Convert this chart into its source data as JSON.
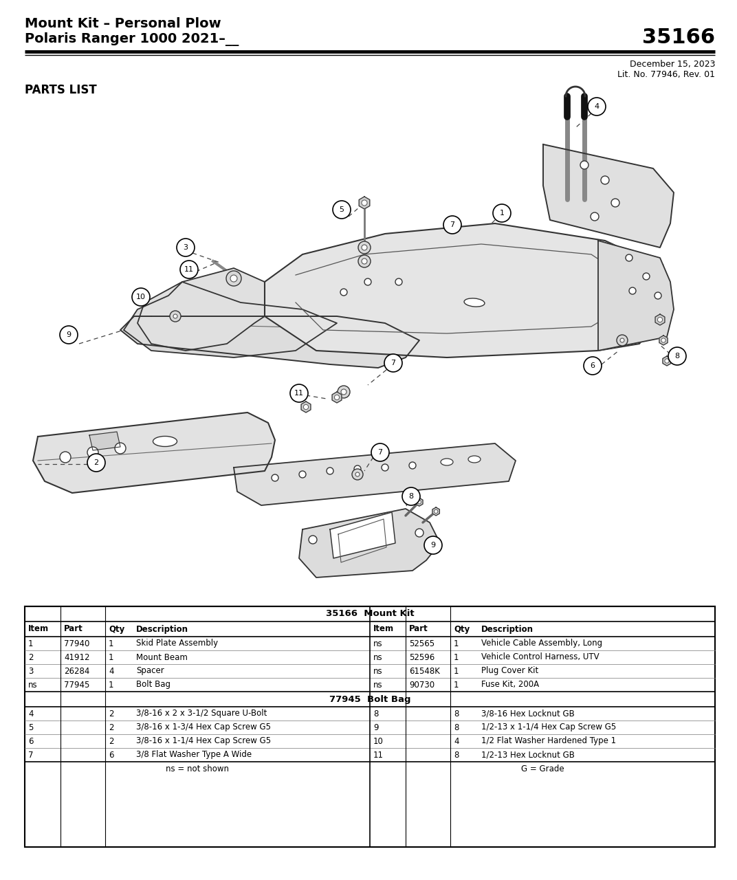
{
  "title_line1": "Mount Kit – Personal Plow",
  "title_line2": "Polaris Ranger 1000 2021–__",
  "part_number": "35166",
  "date": "December 15, 2023",
  "lit_no": "Lit. No. 77946, Rev. 01",
  "parts_list_label": "PARTS LIST",
  "bg_color": "#ffffff",
  "table_title1": "35166  Mount Kit",
  "table_title2": "77945  Bolt Bag",
  "mount_kit_rows": [
    [
      "1",
      "77940",
      "1",
      "Skid Plate Assembly",
      "ns",
      "52565",
      "1",
      "Vehicle Cable Assembly, Long"
    ],
    [
      "2",
      "41912",
      "1",
      "Mount Beam",
      "ns",
      "52596",
      "1",
      "Vehicle Control Harness, UTV"
    ],
    [
      "3",
      "26284",
      "4",
      "Spacer",
      "ns",
      "61548K",
      "1",
      "Plug Cover Kit"
    ],
    [
      "ns",
      "77945",
      "1",
      "Bolt Bag",
      "ns",
      "90730",
      "1",
      "Fuse Kit, 200A"
    ]
  ],
  "bolt_bag_rows": [
    [
      "4",
      "",
      "2",
      "3/8-16 x 2 x 3-1/2 Square U-Bolt",
      "8",
      "",
      "8",
      "3/8-16 Hex Locknut GB"
    ],
    [
      "5",
      "",
      "2",
      "3/8-16 x 1-3/4 Hex Cap Screw G5",
      "9",
      "",
      "8",
      "1/2-13 x 1-1/4 Hex Cap Screw G5"
    ],
    [
      "6",
      "",
      "2",
      "3/8-16 x 1-1/4 Hex Cap Screw G5",
      "10",
      "",
      "4",
      "1/2 Flat Washer Hardened Type 1"
    ],
    [
      "7",
      "",
      "6",
      "3/8 Flat Washer Type A Wide",
      "11",
      "",
      "8",
      "1/2-13 Hex Locknut GB"
    ]
  ],
  "footer_left": "ns = not shown",
  "footer_right": "G = Grade",
  "header_fontsize": 14,
  "part_num_fontsize": 22,
  "small_fontsize": 9,
  "parts_list_fontsize": 12
}
